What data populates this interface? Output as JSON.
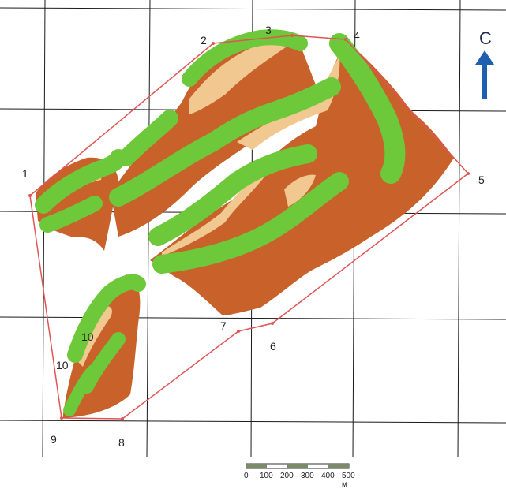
{
  "map": {
    "north_label": "С",
    "point_labels": [
      "1",
      "2",
      "3",
      "4",
      "5",
      "6",
      "7",
      "8",
      "9"
    ],
    "zone_labels": [
      "10",
      "10"
    ],
    "scale": {
      "ticks": [
        "0",
        "100",
        "200",
        "300",
        "400",
        "500 м"
      ]
    },
    "colors": {
      "grid": "#1a1a1a",
      "boundary": "#e05555",
      "slope": "#c8612a",
      "slope_light": "#f0c890",
      "vegetation": "#6dc83a",
      "arrow": "#1f5fb0"
    }
  }
}
